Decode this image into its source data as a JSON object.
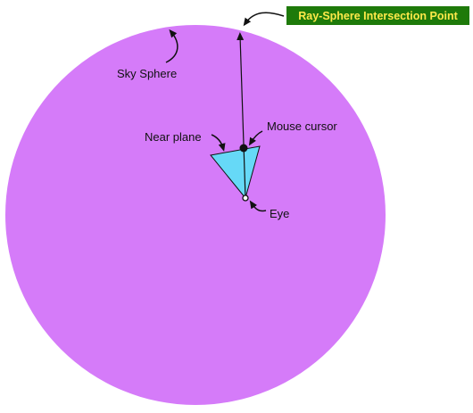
{
  "labels": {
    "title": "Ray-Sphere Intersection Point",
    "sky_sphere": "Sky Sphere",
    "mouse_cursor": "Mouse cursor",
    "near_plane": "Near plane",
    "eye": "Eye"
  },
  "colors": {
    "sphere_fill": "#d57bf9",
    "frustum_fill": "#66d9f7",
    "title_bg": "#1e7a0a",
    "title_text": "#ffe94a",
    "ink": "#111111"
  }
}
